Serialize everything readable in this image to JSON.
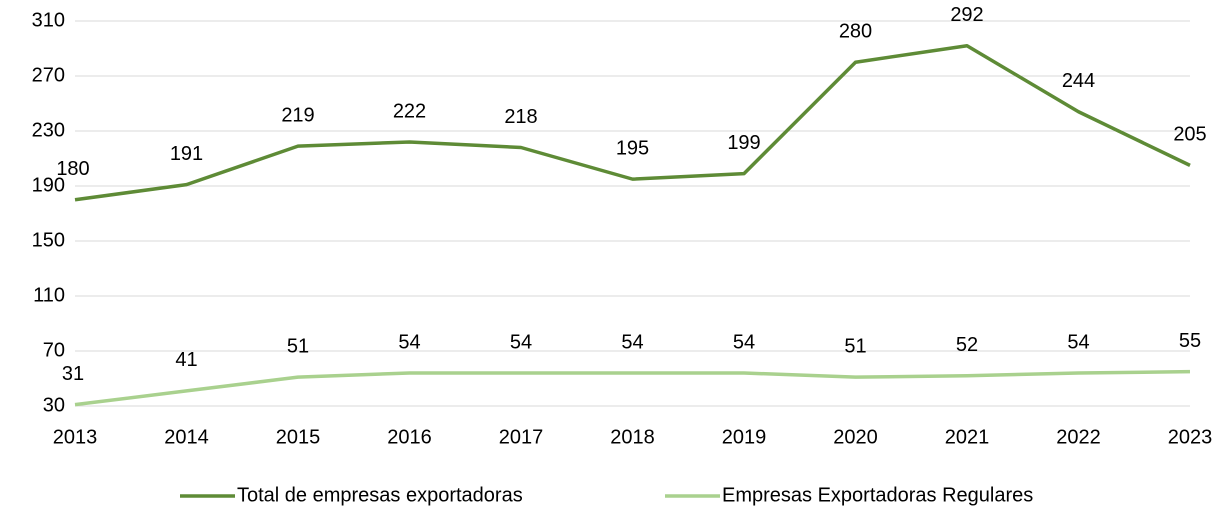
{
  "chart_data": {
    "type": "line",
    "categories": [
      "2013",
      "2014",
      "2015",
      "2016",
      "2017",
      "2018",
      "2019",
      "2020",
      "2021",
      "2022",
      "2023"
    ],
    "series": [
      {
        "name": "Total de empresas exportadoras",
        "color": "#5e8b36",
        "values": [
          180,
          191,
          219,
          222,
          218,
          195,
          199,
          280,
          292,
          244,
          205
        ]
      },
      {
        "name": "Empresas Exportadoras Regulares",
        "color": "#a9d18e",
        "values": [
          31,
          41,
          51,
          54,
          54,
          54,
          54,
          51,
          52,
          54,
          55
        ]
      }
    ],
    "ylim": [
      30,
      310
    ],
    "yticks": [
      30,
      70,
      110,
      150,
      190,
      230,
      270,
      310
    ],
    "grid": true,
    "legend": "bottom"
  }
}
